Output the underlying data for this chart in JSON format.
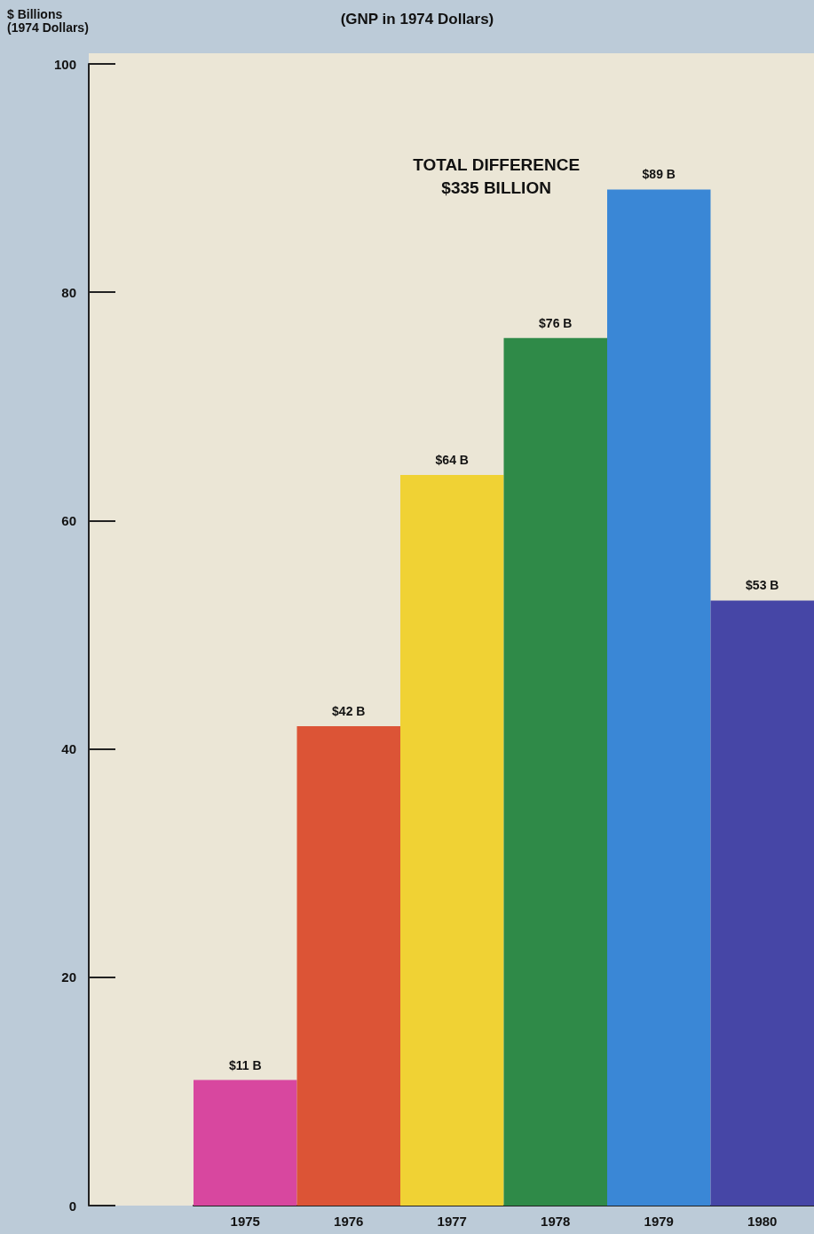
{
  "chart_data": {
    "type": "bar",
    "title": "(GNP in 1974 Dollars)",
    "ylabel": "$ Billions\n(1974 Dollars)",
    "annotations": [
      "TOTAL DIFFERENCE\n$335 BILLION"
    ],
    "categories": [
      "1975",
      "1976",
      "1977",
      "1978",
      "1979",
      "1980"
    ],
    "values": [
      11,
      42,
      64,
      76,
      89,
      53
    ],
    "colors": [
      "#d8479f",
      "#dc5436",
      "#f0d234",
      "#2f8a48",
      "#3a87d6",
      "#4646a6"
    ],
    "value_labels": [
      "$11 B",
      "$42 B",
      "$64 B",
      "$76 B",
      "$89 B",
      "$53 B"
    ],
    "ylim": [
      0,
      100
    ],
    "yticks": [
      0,
      20,
      40,
      60,
      80,
      100
    ],
    "grid": false
  }
}
